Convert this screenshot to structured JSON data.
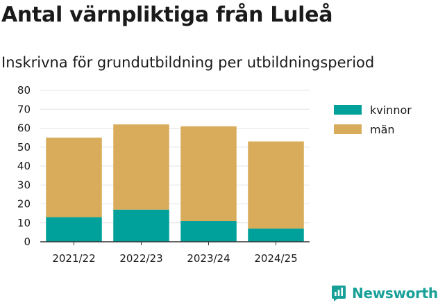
{
  "title": "Antal värnpliktiga från Luleå",
  "subtitle": "Inskrivna för grundutbildning per utbildningsperiod",
  "brand": {
    "name": "Newsworthy",
    "icon": "newsworthy-logo-icon",
    "color": "#17a097"
  },
  "chart_data": {
    "type": "bar",
    "stacked": true,
    "categories": [
      "2021/22",
      "2022/23",
      "2023/24",
      "2024/25"
    ],
    "series": [
      {
        "name": "kvinnor",
        "values": [
          13,
          17,
          11,
          7
        ],
        "color": "#00a19a"
      },
      {
        "name": "män",
        "values": [
          42,
          45,
          50,
          46
        ],
        "color": "#d9ac5b"
      }
    ],
    "ylim": [
      0,
      80
    ],
    "yticks": [
      0,
      10,
      20,
      30,
      40,
      50,
      60,
      70,
      80
    ],
    "grid": true,
    "legend": "right"
  }
}
